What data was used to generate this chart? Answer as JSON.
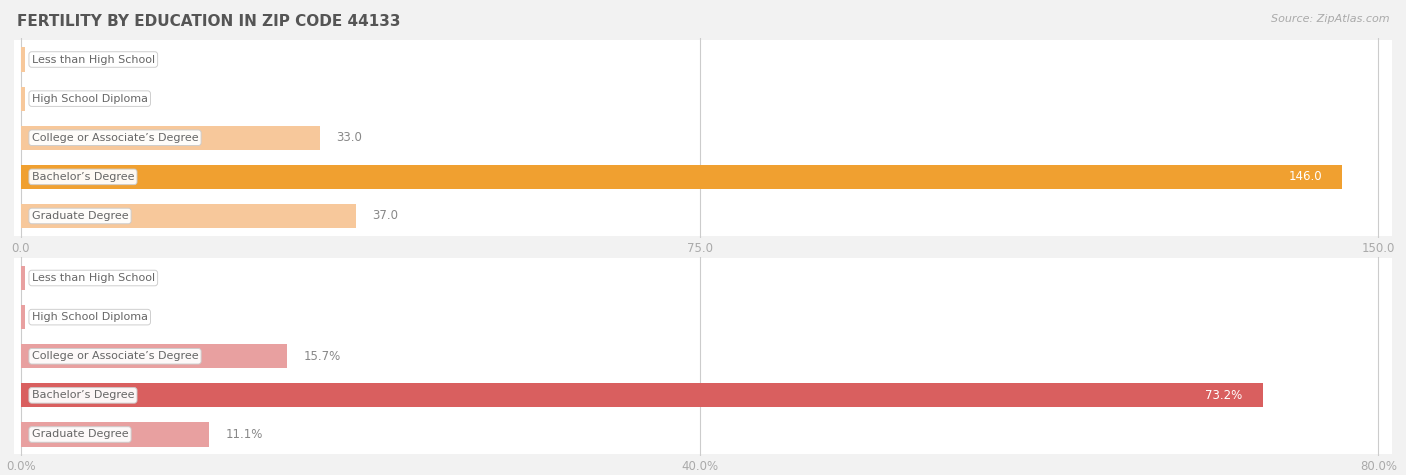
{
  "title": "FERTILITY BY EDUCATION IN ZIP CODE 44133",
  "source": "Source: ZipAtlas.com",
  "top_chart": {
    "categories": [
      "Less than High School",
      "High School Diploma",
      "College or Associate’s Degree",
      "Bachelor’s Degree",
      "Graduate Degree"
    ],
    "values": [
      0.0,
      0.0,
      33.0,
      146.0,
      37.0
    ],
    "xlim": [
      0,
      150
    ],
    "xticks": [
      0.0,
      75.0,
      150.0
    ],
    "bar_color_normal": "#f7c89b",
    "bar_color_max": "#f0a030",
    "bar_height": 0.62
  },
  "bottom_chart": {
    "categories": [
      "Less than High School",
      "High School Diploma",
      "College or Associate’s Degree",
      "Bachelor’s Degree",
      "Graduate Degree"
    ],
    "values": [
      0.0,
      0.0,
      15.7,
      73.2,
      11.1
    ],
    "xlim": [
      0,
      80
    ],
    "xticks": [
      0.0,
      40.0,
      80.0
    ],
    "bar_color_normal": "#e8a0a0",
    "bar_color_max": "#d95f5f",
    "bar_height": 0.62
  },
  "bg_color": "#f2f2f2",
  "row_bg_color": "#ffffff",
  "label_box_color": "#ffffff",
  "label_box_edge": "#cccccc",
  "title_color": "#555555",
  "source_color": "#aaaaaa",
  "tick_color": "#aaaaaa",
  "grid_color": "#cccccc",
  "value_label_color_normal": "#888888",
  "value_label_color_max": "#ffffff",
  "label_text_color": "#666666",
  "label_fontsize": 8.0,
  "value_fontsize": 8.5,
  "title_fontsize": 11,
  "source_fontsize": 8
}
